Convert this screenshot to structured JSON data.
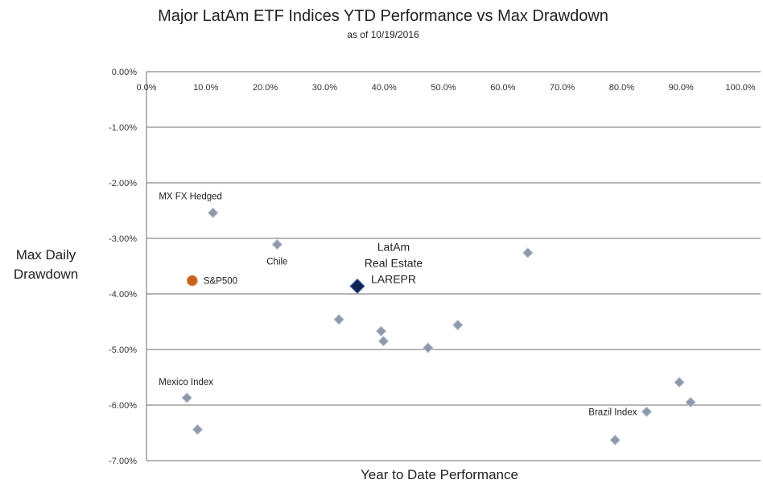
{
  "chart_data": {
    "type": "scatter",
    "title": "Major LatAm ETF Indices YTD Performance vs Max Drawdown",
    "subtitle": "as of 10/19/2016",
    "xlabel": "Year to Date Performance",
    "ylabel": [
      "Max Daily",
      "Drawdown"
    ],
    "xlim": [
      0,
      1.0
    ],
    "ylim": [
      -0.07,
      0
    ],
    "grid": "horizontal",
    "x_ticks": [
      "0.0%",
      "10.0%",
      "20.0%",
      "30.0%",
      "40.0%",
      "50.0%",
      "60.0%",
      "70.0%",
      "80.0%",
      "90.0%",
      "100.0%"
    ],
    "y_ticks": [
      "0.00%",
      "-1.00%",
      "-2.00%",
      "-3.00%",
      "-4.00%",
      "-5.00%",
      "-6.00%",
      "-7.00%"
    ],
    "series": [
      {
        "role": "etf",
        "color": "#8e9aab",
        "marker": "diamond",
        "points": [
          {
            "x": 0.112,
            "y": -0.0254
          },
          {
            "x": 0.22,
            "y": -0.0311
          },
          {
            "x": 0.068,
            "y": -0.0587
          },
          {
            "x": 0.086,
            "y": -0.0644
          },
          {
            "x": 0.324,
            "y": -0.0446
          },
          {
            "x": 0.395,
            "y": -0.0467
          },
          {
            "x": 0.399,
            "y": -0.0485
          },
          {
            "x": 0.474,
            "y": -0.0497
          },
          {
            "x": 0.524,
            "y": -0.0456
          },
          {
            "x": 0.642,
            "y": -0.0326
          },
          {
            "x": 0.789,
            "y": -0.0663
          },
          {
            "x": 0.842,
            "y": -0.0612
          },
          {
            "x": 0.897,
            "y": -0.0559
          },
          {
            "x": 0.916,
            "y": -0.0595
          }
        ]
      },
      {
        "role": "benchmark",
        "color": "#c8601c",
        "marker": "circle",
        "points": [
          {
            "x": 0.077,
            "y": -0.0376
          }
        ]
      },
      {
        "role": "highlight",
        "color": "#0f2352",
        "marker": "diamond",
        "points": [
          {
            "x": 0.355,
            "y": -0.0386
          }
        ]
      }
    ],
    "annotations": [
      {
        "text": "MX FX Hedged",
        "x": 0.112,
        "y": -0.0254,
        "pos": "above-left"
      },
      {
        "text": "Chile",
        "x": 0.22,
        "y": -0.0311,
        "pos": "below"
      },
      {
        "text": "S&P500",
        "x": 0.077,
        "y": -0.0376,
        "pos": "right"
      },
      {
        "text": "Mexico Index",
        "x": 0.068,
        "y": -0.0587,
        "pos": "above"
      },
      {
        "text": "Brazil Index",
        "x": 0.842,
        "y": -0.0612,
        "pos": "left"
      },
      {
        "text": [
          "LatAm",
          "Real Estate",
          "LAREPR"
        ],
        "x": 0.355,
        "y": -0.0386,
        "pos": "above-right"
      }
    ]
  }
}
